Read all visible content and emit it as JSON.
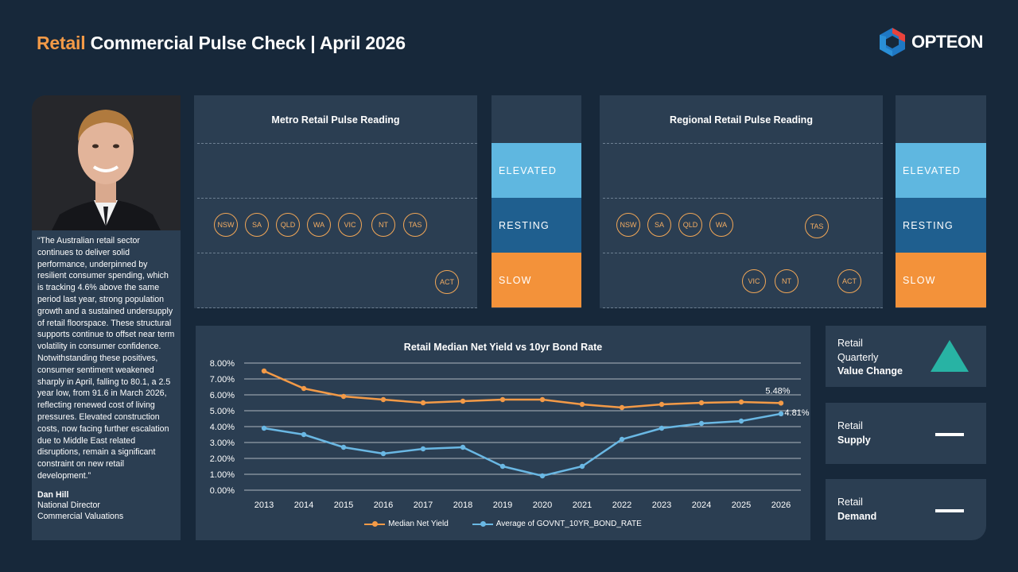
{
  "header": {
    "title_accent": "Retail",
    "title_rest": " Commercial Pulse Check | April 2026",
    "logo_text": "OPTEON",
    "logo_icon": "opteon-hexagon-logo"
  },
  "quote": {
    "text": "“The Australian retail sector continues to deliver solid performance, underpinned by resilient consumer spending, which is tracking 4.6% above the same period last year, strong population growth and a sustained undersupply of retail floorspace. These structural supports continue to offset near term volatility in consumer confidence. Notwithstanding these positives, consumer sentiment weakened sharply in April, falling to 80.1, a 2.5 year low, from 91.6 in March 2026, reflecting renewed cost of living pressures. Elevated construction costs, now facing further escalation due to Middle East related disruptions, remain a significant constraint on new retail development.”",
    "author_name": "Dan Hill",
    "author_role": "National Director",
    "author_dept": "Commercial Valuations"
  },
  "levels": {
    "elevated": "ELEVATED",
    "resting": "RESTING",
    "slow": "SLOW"
  },
  "metro": {
    "title": "Metro Retail Pulse Reading",
    "resting": [
      "NSW",
      "SA",
      "QLD",
      "WA",
      "VIC",
      "NT",
      "TAS"
    ],
    "slow": [
      "ACT"
    ]
  },
  "regional": {
    "title": "Regional Retail Pulse Reading",
    "resting": [
      "NSW",
      "SA",
      "QLD",
      "WA",
      "TAS"
    ],
    "slow": [
      "VIC",
      "NT",
      "ACT"
    ]
  },
  "chart_data": {
    "type": "line",
    "title": "Retail Median Net Yield vs 10yr Bond Rate",
    "x": [
      "2013",
      "2014",
      "2015",
      "2016",
      "2017",
      "2018",
      "2019",
      "2020",
      "2021",
      "2022",
      "2023",
      "2024",
      "2025",
      "2026"
    ],
    "y_ticks": [
      "0.00%",
      "1.00%",
      "2.00%",
      "3.00%",
      "4.00%",
      "5.00%",
      "6.00%",
      "7.00%",
      "8.00%"
    ],
    "ylim": [
      0,
      8
    ],
    "grid": true,
    "legend_position": "bottom",
    "series": [
      {
        "name": "Median Net Yield",
        "color": "#f39a47",
        "values": [
          7.5,
          6.4,
          5.9,
          5.7,
          5.5,
          5.6,
          5.7,
          5.7,
          5.4,
          5.2,
          5.4,
          5.5,
          5.55,
          5.48
        ],
        "end_label": "5.48%"
      },
      {
        "name": "Average of GOVNT_10YR_BOND_RATE",
        "color": "#6ab8e4",
        "values": [
          3.9,
          3.5,
          2.7,
          2.3,
          2.6,
          2.7,
          1.5,
          0.9,
          1.5,
          3.2,
          3.9,
          4.2,
          4.35,
          4.81
        ],
        "end_label": "4.81%"
      }
    ]
  },
  "indicators": {
    "value_change": {
      "line1": "Retail",
      "line2": "Quarterly",
      "line3": "Value Change",
      "icon": "up-triangle-icon"
    },
    "supply": {
      "line1": "Retail",
      "line2": "Supply",
      "icon": "flat-dash-icon"
    },
    "demand": {
      "line1": "Retail",
      "line2": "Demand",
      "icon": "flat-dash-icon"
    }
  }
}
